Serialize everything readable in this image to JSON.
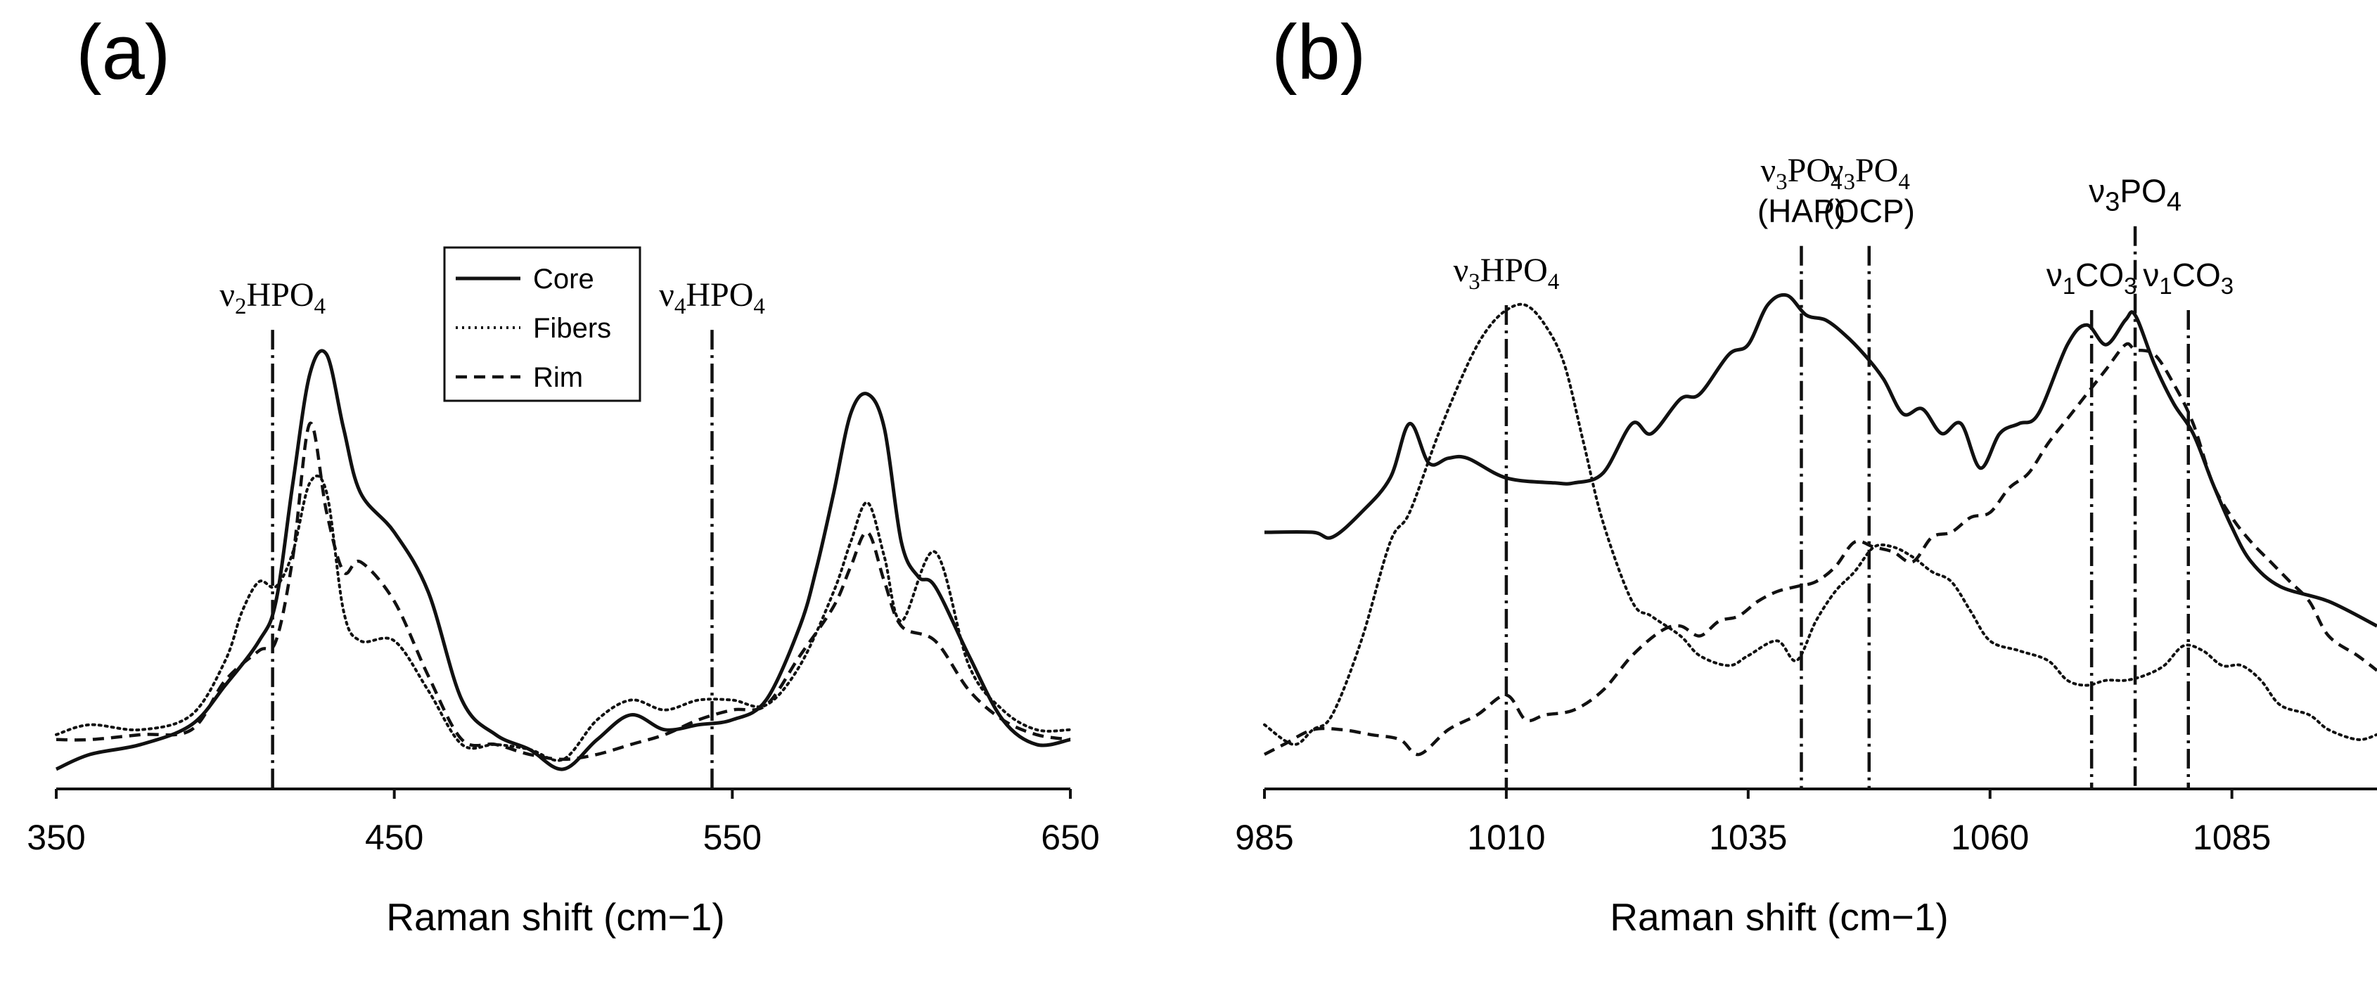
{
  "chart_data": [
    {
      "id": "a",
      "type": "line",
      "panel_label": "(a)",
      "xlabel": "Raman shift (cm−1)",
      "ylabel": "",
      "xlim": [
        350,
        650
      ],
      "ylim": [
        0,
        1
      ],
      "x_ticks": [
        350,
        450,
        550,
        650
      ],
      "x_tick_labels": [
        "350",
        "450",
        "550",
        "650"
      ],
      "legend": {
        "position": "top-center",
        "entries": [
          {
            "name": "Core",
            "style": "solid"
          },
          {
            "name": "Fibers",
            "style": "dotted"
          },
          {
            "name": "Rim",
            "style": "dashed"
          }
        ]
      },
      "markers": [
        {
          "x": 414,
          "base": "ν",
          "sub": "2",
          "rest": "HPO",
          "sub2": "4"
        },
        {
          "x": 544,
          "base": "ν",
          "sub": "4",
          "rest": "HPO",
          "sub2": "4"
        }
      ],
      "series": [
        {
          "name": "Core",
          "style": "solid",
          "x": [
            350,
            360,
            375,
            390,
            400,
            410,
            415,
            420,
            425,
            430,
            435,
            440,
            450,
            460,
            470,
            480,
            490,
            500,
            510,
            520,
            530,
            540,
            550,
            560,
            570,
            575,
            580,
            585,
            590,
            595,
            600,
            605,
            610,
            620,
            630,
            640,
            650
          ],
          "y": [
            0.04,
            0.07,
            0.09,
            0.13,
            0.21,
            0.3,
            0.38,
            0.62,
            0.84,
            0.88,
            0.73,
            0.6,
            0.52,
            0.4,
            0.18,
            0.11,
            0.08,
            0.04,
            0.1,
            0.15,
            0.12,
            0.13,
            0.14,
            0.18,
            0.33,
            0.45,
            0.6,
            0.76,
            0.8,
            0.73,
            0.5,
            0.43,
            0.41,
            0.27,
            0.14,
            0.09,
            0.1
          ]
        },
        {
          "name": "Fibers",
          "style": "dotted",
          "x": [
            350,
            360,
            375,
            390,
            400,
            405,
            410,
            415,
            420,
            425,
            430,
            435,
            440,
            450,
            460,
            470,
            480,
            490,
            500,
            510,
            520,
            530,
            540,
            550,
            560,
            570,
            580,
            585,
            590,
            595,
            600,
            610,
            620,
            630,
            640,
            650
          ],
          "y": [
            0.11,
            0.13,
            0.12,
            0.15,
            0.26,
            0.36,
            0.42,
            0.41,
            0.48,
            0.62,
            0.6,
            0.36,
            0.3,
            0.3,
            0.2,
            0.09,
            0.09,
            0.08,
            0.06,
            0.14,
            0.18,
            0.16,
            0.18,
            0.18,
            0.17,
            0.25,
            0.4,
            0.5,
            0.58,
            0.47,
            0.34,
            0.48,
            0.25,
            0.16,
            0.12,
            0.12
          ]
        },
        {
          "name": "Rim",
          "style": "dashed",
          "x": [
            350,
            360,
            375,
            390,
            400,
            410,
            415,
            420,
            425,
            430,
            435,
            440,
            450,
            460,
            470,
            480,
            490,
            500,
            510,
            520,
            530,
            540,
            550,
            560,
            570,
            580,
            585,
            590,
            595,
            600,
            610,
            620,
            630,
            640,
            650
          ],
          "y": [
            0.1,
            0.1,
            0.11,
            0.12,
            0.22,
            0.28,
            0.3,
            0.47,
            0.74,
            0.56,
            0.44,
            0.46,
            0.38,
            0.23,
            0.1,
            0.09,
            0.07,
            0.06,
            0.07,
            0.09,
            0.11,
            0.14,
            0.16,
            0.17,
            0.27,
            0.37,
            0.45,
            0.52,
            0.42,
            0.33,
            0.3,
            0.2,
            0.14,
            0.11,
            0.1
          ]
        }
      ]
    },
    {
      "id": "b",
      "type": "line",
      "panel_label": "(b)",
      "xlabel": "Raman shift (cm−1)",
      "ylabel": "",
      "xlim": [
        985,
        1100
      ],
      "ylim": [
        0,
        1
      ],
      "x_ticks": [
        985,
        1010,
        1035,
        1060,
        1085
      ],
      "x_tick_labels": [
        "985",
        "1010",
        "1035",
        "1060",
        "1085"
      ],
      "markers": [
        {
          "x": 1010,
          "line_to": 0.98,
          "lines": [
            {
              "base": "ν",
              "sub": "3",
              "rest": "HPO",
              "sub2": "4",
              "sans": false
            }
          ]
        },
        {
          "x": 1040.5,
          "line_to": 1.1,
          "lines": [
            {
              "base": "ν",
              "sub": "3",
              "rest": "PO",
              "sub2": "4",
              "sans": false
            },
            {
              "text": "(HAP)"
            }
          ]
        },
        {
          "x": 1047.5,
          "line_to": 1.1,
          "lines": [
            {
              "base": "ν",
              "sub": "3",
              "rest": "PO",
              "sub2": "4",
              "sans": false
            },
            {
              "text": "(OCP)"
            }
          ]
        },
        {
          "x": 1070.5,
          "line_to": 0.97,
          "lines": [
            {
              "base": "ν",
              "sub": "1",
              "rest": "CO",
              "sub2": "3",
              "sans": true
            }
          ]
        },
        {
          "x": 1075,
          "line_to": 1.14,
          "lines": [
            {
              "base": "ν",
              "sub": "3",
              "rest": "PO",
              "sub2": "4",
              "sans": true,
              "big": true
            }
          ]
        },
        {
          "x": 1080.5,
          "line_to": 0.97,
          "lines": [
            {
              "base": "ν",
              "sub": "1",
              "rest": "CO",
              "sub2": "3",
              "sans": true
            }
          ]
        }
      ],
      "series": [
        {
          "name": "Core",
          "style": "solid",
          "x": [
            985,
            990,
            992,
            995,
            998,
            1000,
            1002,
            1004,
            1006,
            1010,
            1015,
            1017,
            1020,
            1023,
            1025,
            1028,
            1030,
            1033,
            1035,
            1037,
            1039,
            1041,
            1043,
            1045,
            1047,
            1049,
            1051,
            1053,
            1055,
            1057,
            1059,
            1061,
            1063,
            1065,
            1068,
            1070,
            1072,
            1074,
            1075,
            1077,
            1079,
            1081,
            1083,
            1085,
            1087,
            1090,
            1095,
            1100
          ],
          "y": [
            0.52,
            0.52,
            0.51,
            0.56,
            0.63,
            0.74,
            0.66,
            0.67,
            0.67,
            0.63,
            0.62,
            0.62,
            0.64,
            0.74,
            0.72,
            0.79,
            0.8,
            0.88,
            0.9,
            0.98,
            1.0,
            0.96,
            0.95,
            0.92,
            0.88,
            0.83,
            0.76,
            0.77,
            0.72,
            0.74,
            0.65,
            0.72,
            0.74,
            0.76,
            0.9,
            0.94,
            0.9,
            0.95,
            0.96,
            0.86,
            0.78,
            0.72,
            0.62,
            0.53,
            0.46,
            0.41,
            0.38,
            0.33
          ]
        },
        {
          "name": "Fibers",
          "style": "dotted",
          "x": [
            985,
            988,
            990,
            992,
            995,
            998,
            1000,
            1003,
            1006,
            1008,
            1010,
            1012,
            1014,
            1016,
            1018,
            1020,
            1023,
            1025,
            1028,
            1030,
            1033,
            1035,
            1038,
            1040,
            1042,
            1044,
            1046,
            1048,
            1050,
            1052,
            1054,
            1056,
            1058,
            1060,
            1063,
            1066,
            1068,
            1070,
            1072,
            1074,
            1076,
            1078,
            1080,
            1082,
            1084,
            1086,
            1088,
            1090,
            1093,
            1095,
            1098,
            1100
          ],
          "y": [
            0.13,
            0.09,
            0.12,
            0.15,
            0.3,
            0.5,
            0.56,
            0.72,
            0.86,
            0.93,
            0.97,
            0.98,
            0.94,
            0.86,
            0.7,
            0.54,
            0.38,
            0.35,
            0.31,
            0.27,
            0.25,
            0.27,
            0.3,
            0.26,
            0.34,
            0.4,
            0.44,
            0.49,
            0.49,
            0.47,
            0.44,
            0.42,
            0.36,
            0.3,
            0.28,
            0.26,
            0.22,
            0.21,
            0.22,
            0.22,
            0.23,
            0.25,
            0.29,
            0.28,
            0.25,
            0.25,
            0.22,
            0.17,
            0.15,
            0.12,
            0.1,
            0.11
          ]
        },
        {
          "name": "Rim",
          "style": "dashed",
          "x": [
            985,
            987,
            990,
            993,
            996,
            999,
            1001,
            1004,
            1007,
            1010,
            1012,
            1014,
            1017,
            1020,
            1023,
            1026,
            1028,
            1030,
            1032,
            1034,
            1036,
            1038,
            1040,
            1042,
            1044,
            1046,
            1048,
            1050,
            1052,
            1054,
            1056,
            1058,
            1060,
            1062,
            1064,
            1066,
            1068,
            1070,
            1072,
            1074,
            1075,
            1077,
            1079,
            1081,
            1083,
            1085,
            1087,
            1089,
            1091,
            1093,
            1095,
            1098,
            1100
          ],
          "y": [
            0.07,
            0.09,
            0.12,
            0.12,
            0.11,
            0.1,
            0.07,
            0.12,
            0.15,
            0.19,
            0.14,
            0.15,
            0.16,
            0.2,
            0.27,
            0.32,
            0.33,
            0.31,
            0.34,
            0.35,
            0.38,
            0.4,
            0.41,
            0.42,
            0.45,
            0.5,
            0.49,
            0.48,
            0.46,
            0.51,
            0.52,
            0.55,
            0.56,
            0.61,
            0.64,
            0.7,
            0.75,
            0.8,
            0.85,
            0.9,
            0.89,
            0.88,
            0.82,
            0.74,
            0.62,
            0.55,
            0.5,
            0.46,
            0.42,
            0.38,
            0.31,
            0.27,
            0.24
          ]
        }
      ]
    }
  ]
}
